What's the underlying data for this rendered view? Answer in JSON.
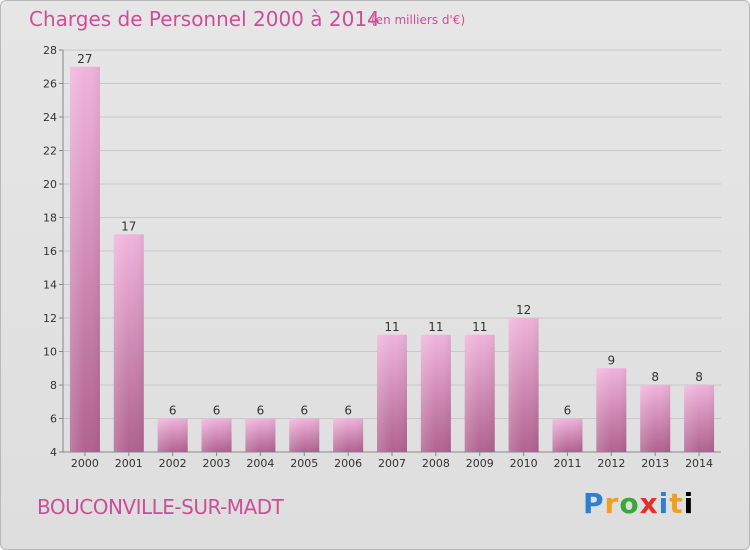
{
  "header": {
    "title": "Charges de Personnel 2000 à 2014",
    "subtitle": "(en milliers d'€)"
  },
  "footer": {
    "place_name": "BOUCONVILLE-SUR-MADT",
    "logo_text": "Proxiti"
  },
  "colors": {
    "title": "#ca4f98",
    "bar_light": "#f0b4dc",
    "bar_dark": "#b0628f",
    "grid": "#c8c8c8"
  },
  "chart_data": {
    "type": "bar",
    "categories": [
      "2000",
      "2001",
      "2002",
      "2003",
      "2004",
      "2005",
      "2006",
      "2007",
      "2008",
      "2009",
      "2010",
      "2011",
      "2012",
      "2013",
      "2014"
    ],
    "values": [
      27,
      17,
      6,
      6,
      6,
      6,
      6,
      11,
      11,
      11,
      12,
      6,
      9,
      8,
      8
    ],
    "ylim": [
      4,
      28
    ],
    "yticks": [
      4,
      6,
      8,
      10,
      12,
      14,
      16,
      18,
      20,
      22,
      24,
      26,
      28
    ],
    "grid": true,
    "legend": "none"
  }
}
